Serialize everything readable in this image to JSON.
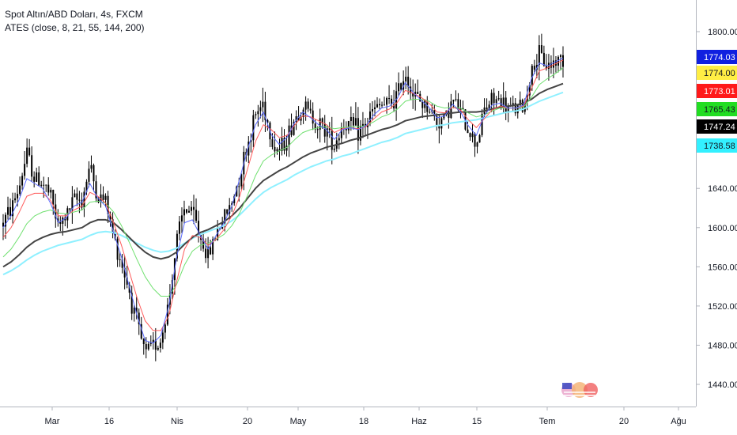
{
  "legend": {
    "symbol_line": "Spot Altın/ABD Doları, 4s, FXCM",
    "indicator_line": "ATES (close, 8, 21, 55, 144, 200)"
  },
  "colors": {
    "background": "#ffffff",
    "candle": "#000000",
    "ma8": "#5b6bff",
    "ma21": "#ff5a5a",
    "ma55": "#6fe06f",
    "ma144": "#444444",
    "ma200": "#8ff0ff",
    "axis_line": "#b2b5be",
    "text": "#131722"
  },
  "watermark_icon": "tradingview-flag-icon",
  "chart_data": {
    "type": "line",
    "title": "Spot Altın/ABD Doları, 4s, FXCM",
    "y_axis": {
      "side": "right",
      "min": 1420,
      "max": 1820,
      "ticks": [
        "1800.00",
        "1640.00",
        "1600.00",
        "1560.00",
        "1520.00",
        "1480.00",
        "1440.00"
      ]
    },
    "x_axis": {
      "ticks": [
        "Mar",
        "16",
        "Nis",
        "20",
        "May",
        "18",
        "Haz",
        "15",
        "Tem",
        "20",
        "Ağu"
      ]
    },
    "grid": false,
    "legend_position": "top-left",
    "price_labels": [
      {
        "text": "1774.03",
        "value": 1774.03,
        "bg": "#1020e0",
        "fg": "#ffffff"
      },
      {
        "text": "1774.00",
        "value": 1774.0,
        "bg": "#ffee44",
        "fg": "#131722"
      },
      {
        "text": "1773.01",
        "value": 1773.01,
        "bg": "#ff1a1a",
        "fg": "#ffffff"
      },
      {
        "text": "1765.43",
        "value": 1765.43,
        "bg": "#22dd22",
        "fg": "#131722"
      },
      {
        "text": "1747.24",
        "value": 1747.24,
        "bg": "#000000",
        "fg": "#ffffff"
      },
      {
        "text": "1738.58",
        "value": 1738.58,
        "bg": "#33f0ff",
        "fg": "#131722"
      }
    ],
    "price_path": [
      [
        0,
        1605
      ],
      [
        1,
        1620
      ],
      [
        2,
        1640
      ],
      [
        3,
        1676
      ],
      [
        4,
        1650
      ],
      [
        5,
        1646
      ],
      [
        6,
        1632
      ],
      [
        7,
        1600
      ],
      [
        8,
        1612
      ],
      [
        9,
        1628
      ],
      [
        10,
        1628
      ],
      [
        11,
        1664
      ],
      [
        12,
        1630
      ],
      [
        13,
        1628
      ],
      [
        14,
        1590
      ],
      [
        15,
        1565
      ],
      [
        16,
        1535
      ],
      [
        17,
        1500
      ],
      [
        18,
        1470
      ],
      [
        19,
        1480
      ],
      [
        20,
        1485
      ],
      [
        21,
        1525
      ],
      [
        22,
        1585
      ],
      [
        23,
        1620
      ],
      [
        24,
        1615
      ],
      [
        25,
        1590
      ],
      [
        26,
        1570
      ],
      [
        27,
        1595
      ],
      [
        28,
        1610
      ],
      [
        29,
        1625
      ],
      [
        30,
        1655
      ],
      [
        31,
        1685
      ],
      [
        32,
        1715
      ],
      [
        33,
        1728
      ],
      [
        34,
        1690
      ],
      [
        35,
        1678
      ],
      [
        36,
        1692
      ],
      [
        37,
        1712
      ],
      [
        38,
        1725
      ],
      [
        39,
        1715
      ],
      [
        40,
        1705
      ],
      [
        41,
        1700
      ],
      [
        42,
        1685
      ],
      [
        43,
        1705
      ],
      [
        44,
        1705
      ],
      [
        45,
        1698
      ],
      [
        46,
        1705
      ],
      [
        47,
        1720
      ],
      [
        48,
        1725
      ],
      [
        49,
        1725
      ],
      [
        50,
        1735
      ],
      [
        51,
        1760
      ],
      [
        52,
        1735
      ],
      [
        53,
        1728
      ],
      [
        54,
        1722
      ],
      [
        55,
        1708
      ],
      [
        56,
        1712
      ],
      [
        57,
        1730
      ],
      [
        58,
        1718
      ],
      [
        59,
        1700
      ],
      [
        60,
        1685
      ],
      [
        61,
        1720
      ],
      [
        62,
        1730
      ],
      [
        63,
        1730
      ],
      [
        64,
        1720
      ],
      [
        65,
        1722
      ],
      [
        66,
        1722
      ],
      [
        67,
        1760
      ],
      [
        68,
        1775
      ],
      [
        69,
        1765
      ],
      [
        70,
        1770
      ],
      [
        71,
        1774
      ]
    ],
    "series": [
      {
        "name": "8",
        "values": [
          1600,
          1612,
          1628,
          1650,
          1645,
          1640,
          1625,
          1605,
          1610,
          1622,
          1626,
          1645,
          1630,
          1622,
          1595,
          1570,
          1540,
          1510,
          1485,
          1482,
          1490,
          1520,
          1570,
          1605,
          1608,
          1592,
          1578,
          1592,
          1605,
          1622,
          1650,
          1680,
          1705,
          1718,
          1695,
          1685,
          1692,
          1708,
          1718,
          1712,
          1705,
          1700,
          1690,
          1700,
          1702,
          1700,
          1704,
          1715,
          1722,
          1724,
          1732,
          1748,
          1738,
          1730,
          1723,
          1712,
          1714,
          1726,
          1718,
          1704,
          1694,
          1714,
          1725,
          1727,
          1722,
          1722,
          1725,
          1752,
          1768,
          1765,
          1769,
          1773
        ]
      },
      {
        "name": "21",
        "values": [
          1590,
          1600,
          1615,
          1632,
          1635,
          1635,
          1628,
          1612,
          1612,
          1618,
          1622,
          1636,
          1632,
          1625,
          1605,
          1582,
          1555,
          1528,
          1505,
          1495,
          1495,
          1510,
          1545,
          1578,
          1592,
          1590,
          1582,
          1588,
          1598,
          1612,
          1632,
          1660,
          1688,
          1705,
          1700,
          1692,
          1694,
          1705,
          1714,
          1713,
          1709,
          1705,
          1697,
          1701,
          1702,
          1701,
          1703,
          1711,
          1718,
          1721,
          1728,
          1740,
          1737,
          1733,
          1727,
          1718,
          1717,
          1723,
          1720,
          1710,
          1702,
          1711,
          1720,
          1724,
          1722,
          1722,
          1724,
          1742,
          1760,
          1763,
          1767,
          1771
        ]
      },
      {
        "name": "55",
        "values": [
          1570,
          1578,
          1590,
          1604,
          1612,
          1616,
          1618,
          1615,
          1614,
          1616,
          1618,
          1626,
          1627,
          1625,
          1616,
          1602,
          1585,
          1567,
          1550,
          1538,
          1530,
          1530,
          1542,
          1562,
          1576,
          1582,
          1584,
          1588,
          1593,
          1602,
          1615,
          1633,
          1653,
          1668,
          1674,
          1678,
          1682,
          1690,
          1697,
          1700,
          1702,
          1703,
          1701,
          1702,
          1703,
          1703,
          1704,
          1708,
          1713,
          1716,
          1721,
          1729,
          1731,
          1731,
          1729,
          1724,
          1722,
          1723,
          1722,
          1717,
          1713,
          1715,
          1719,
          1722,
          1722,
          1722,
          1723,
          1733,
          1746,
          1752,
          1757,
          1763
        ]
      },
      {
        "name": "144",
        "values": [
          1560,
          1565,
          1572,
          1580,
          1586,
          1590,
          1593,
          1595,
          1596,
          1598,
          1600,
          1605,
          1608,
          1608,
          1605,
          1598,
          1590,
          1582,
          1575,
          1570,
          1568,
          1570,
          1575,
          1583,
          1590,
          1595,
          1598,
          1602,
          1606,
          1612,
          1620,
          1630,
          1640,
          1648,
          1653,
          1658,
          1662,
          1667,
          1672,
          1676,
          1679,
          1682,
          1684,
          1686,
          1689,
          1691,
          1694,
          1697,
          1700,
          1702,
          1705,
          1709,
          1711,
          1713,
          1714,
          1715,
          1716,
          1717,
          1718,
          1718,
          1718,
          1719,
          1721,
          1723,
          1724,
          1725,
          1727,
          1731,
          1737,
          1741,
          1744,
          1747
        ]
      },
      {
        "name": "200",
        "values": [
          1552,
          1556,
          1561,
          1567,
          1572,
          1576,
          1579,
          1582,
          1584,
          1586,
          1588,
          1592,
          1595,
          1596,
          1595,
          1592,
          1588,
          1584,
          1580,
          1577,
          1575,
          1576,
          1579,
          1584,
          1589,
          1593,
          1596,
          1599,
          1602,
          1607,
          1613,
          1621,
          1629,
          1636,
          1641,
          1645,
          1649,
          1654,
          1658,
          1662,
          1665,
          1668,
          1670,
          1673,
          1675,
          1678,
          1681,
          1684,
          1687,
          1689,
          1692,
          1696,
          1698,
          1700,
          1702,
          1704,
          1705,
          1707,
          1708,
          1709,
          1710,
          1712,
          1714,
          1716,
          1718,
          1719,
          1721,
          1725,
          1729,
          1732,
          1735,
          1738
        ]
      }
    ]
  }
}
